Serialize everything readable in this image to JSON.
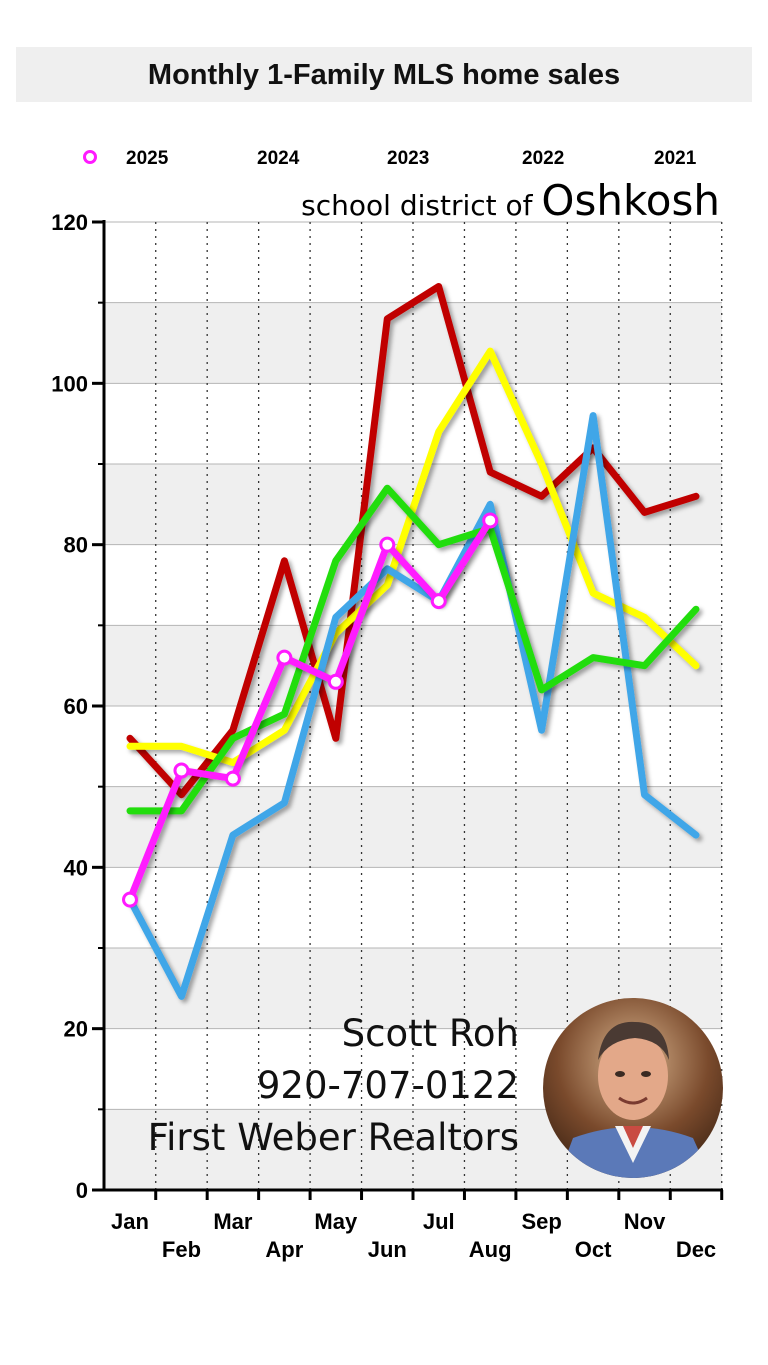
{
  "title": "Monthly 1-Family MLS home sales",
  "subtitle_prefix": "school district of",
  "subtitle_city": "Oshkosh",
  "agent": {
    "name": "Scott Roh",
    "phone": "920-707-0122",
    "company": "First Weber Realtors"
  },
  "chart_data": {
    "type": "line",
    "x": [
      "Jan",
      "Feb",
      "Mar",
      "Apr",
      "May",
      "Jun",
      "Jul",
      "Aug",
      "Sep",
      "Oct",
      "Nov",
      "Dec"
    ],
    "ylim": [
      0,
      120
    ],
    "yticks": [
      0,
      20,
      40,
      60,
      80,
      100,
      120
    ],
    "grid": true,
    "legend_position": "top",
    "series": [
      {
        "name": "2025",
        "color": "#ff1aff",
        "markers": true,
        "values": [
          36,
          52,
          51,
          66,
          63,
          80,
          73,
          83,
          null,
          null,
          null,
          null
        ]
      },
      {
        "name": "2024",
        "color": "#22dd11",
        "markers": false,
        "values": [
          47,
          47,
          56,
          59,
          78,
          87,
          80,
          82,
          62,
          66,
          65,
          72
        ]
      },
      {
        "name": "2023",
        "color": "#3fa6e8",
        "markers": false,
        "values": [
          36,
          24,
          44,
          48,
          71,
          77,
          73,
          85,
          57,
          96,
          49,
          44
        ]
      },
      {
        "name": "2022",
        "color": "#ffff00",
        "markers": false,
        "values": [
          55,
          55,
          53,
          57,
          69,
          75,
          94,
          104,
          90,
          74,
          71,
          65
        ]
      },
      {
        "name": "2021",
        "color": "#c00000",
        "markers": false,
        "values": [
          56,
          49,
          57,
          78,
          56,
          108,
          112,
          89,
          86,
          92,
          84,
          86
        ]
      }
    ]
  }
}
